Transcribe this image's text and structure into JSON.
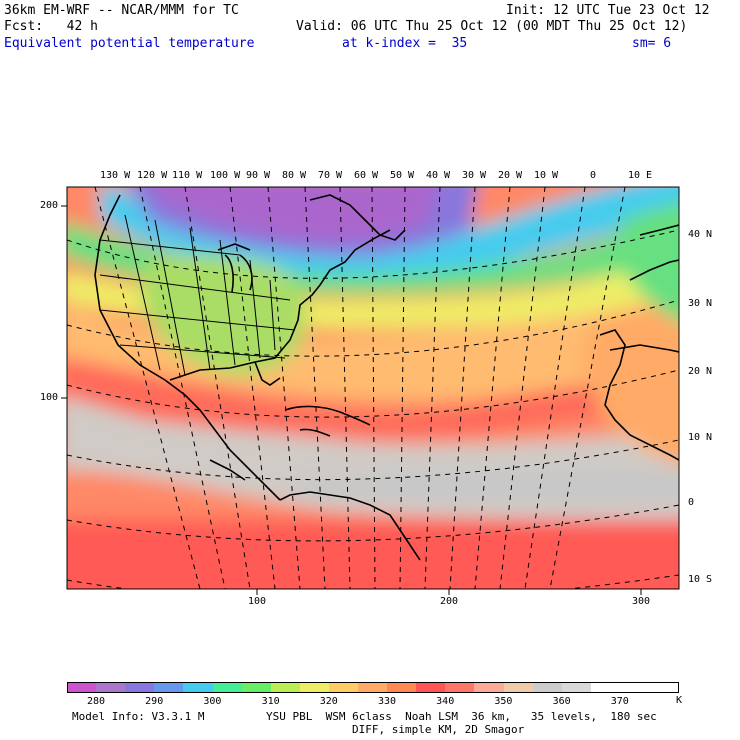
{
  "header": {
    "model_title": "36km EM-WRF -- NCAR/MMM for TC",
    "init_text": "Init: 12 UTC Tue 23 Oct 12",
    "forecast_text": "Fcst:   42 h",
    "valid_text": "Valid: 06 UTC Thu 25 Oct 12 (00 MDT Thu 25 Oct 12)",
    "field_name": "Equivalent potential temperature",
    "level_text": "at k-index =  35",
    "smoothing_text": "sm= 6"
  },
  "map": {
    "lon_labels": [
      "130 W",
      "120 W",
      "110 W",
      "100 W",
      "90 W",
      "80 W",
      "70 W",
      "60 W",
      "50 W",
      "40 W",
      "30 W",
      "20 W",
      "10 W",
      "0",
      "10 E"
    ],
    "lat_labels": [
      "40 N",
      "30 N",
      "20 N",
      "10 N",
      "0",
      "10 S"
    ],
    "grid_y_labels": [
      "200",
      "100"
    ],
    "grid_x_labels": [
      "100",
      "200",
      "300"
    ]
  },
  "legend": {
    "colors": [
      "#cc55cc",
      "#aa77cc",
      "#8877dd",
      "#6699ee",
      "#44ccee",
      "#44ee99",
      "#66ee66",
      "#bbee55",
      "#eeee66",
      "#ffcc66",
      "#ffaa66",
      "#ff8855",
      "#ff5555",
      "#ff7766",
      "#ffaa99",
      "#eeccaa",
      "#cccccc",
      "#d9d9d9",
      "#ffffff",
      "#ffffff",
      "#ffffff"
    ],
    "tick_labels": [
      "280",
      "290",
      "300",
      "310",
      "320",
      "330",
      "340",
      "350",
      "360",
      "370"
    ],
    "unit": "K"
  },
  "footer": {
    "model_info": "Model Info: V3.3.1 M",
    "physics_text": "YSU PBL  WSM 6class  Noah LSM  36 km,   35 levels,  180 sec",
    "diffusion_text": "DIFF, simple KM, 2D Smagor"
  }
}
